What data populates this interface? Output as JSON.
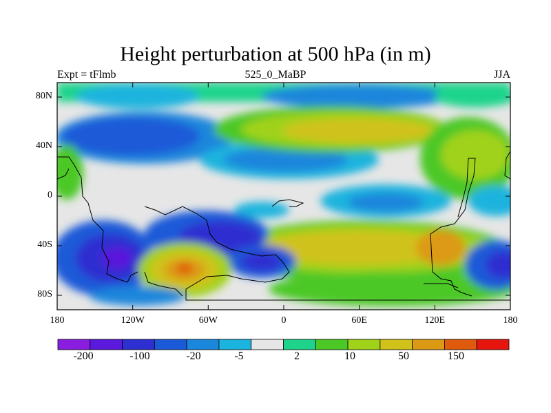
{
  "header": {
    "title": "Height perturbation at 500 hPa (in m)",
    "left": "Expt = tFlmb",
    "center": "525_0_MaBP",
    "right": "JJA"
  },
  "axes": {
    "y_ticks": [
      "80N",
      "40N",
      "0",
      "40S",
      "80S"
    ],
    "x_ticks": [
      "180",
      "120W",
      "60W",
      "0",
      "60E",
      "120E",
      "180"
    ]
  },
  "colorbar": {
    "colors": [
      "#8a1ee0",
      "#5a19dc",
      "#2e2fd0",
      "#1a5ad8",
      "#1a86dc",
      "#1ab4de",
      "#e6e6e6",
      "#1ed48c",
      "#4cc826",
      "#a0d21a",
      "#d0c21a",
      "#dc9a14",
      "#e05a0e",
      "#e6160e"
    ],
    "labels": [
      "-200",
      "-100",
      "-20",
      "-5",
      "2",
      "10",
      "50",
      "150"
    ]
  }
}
